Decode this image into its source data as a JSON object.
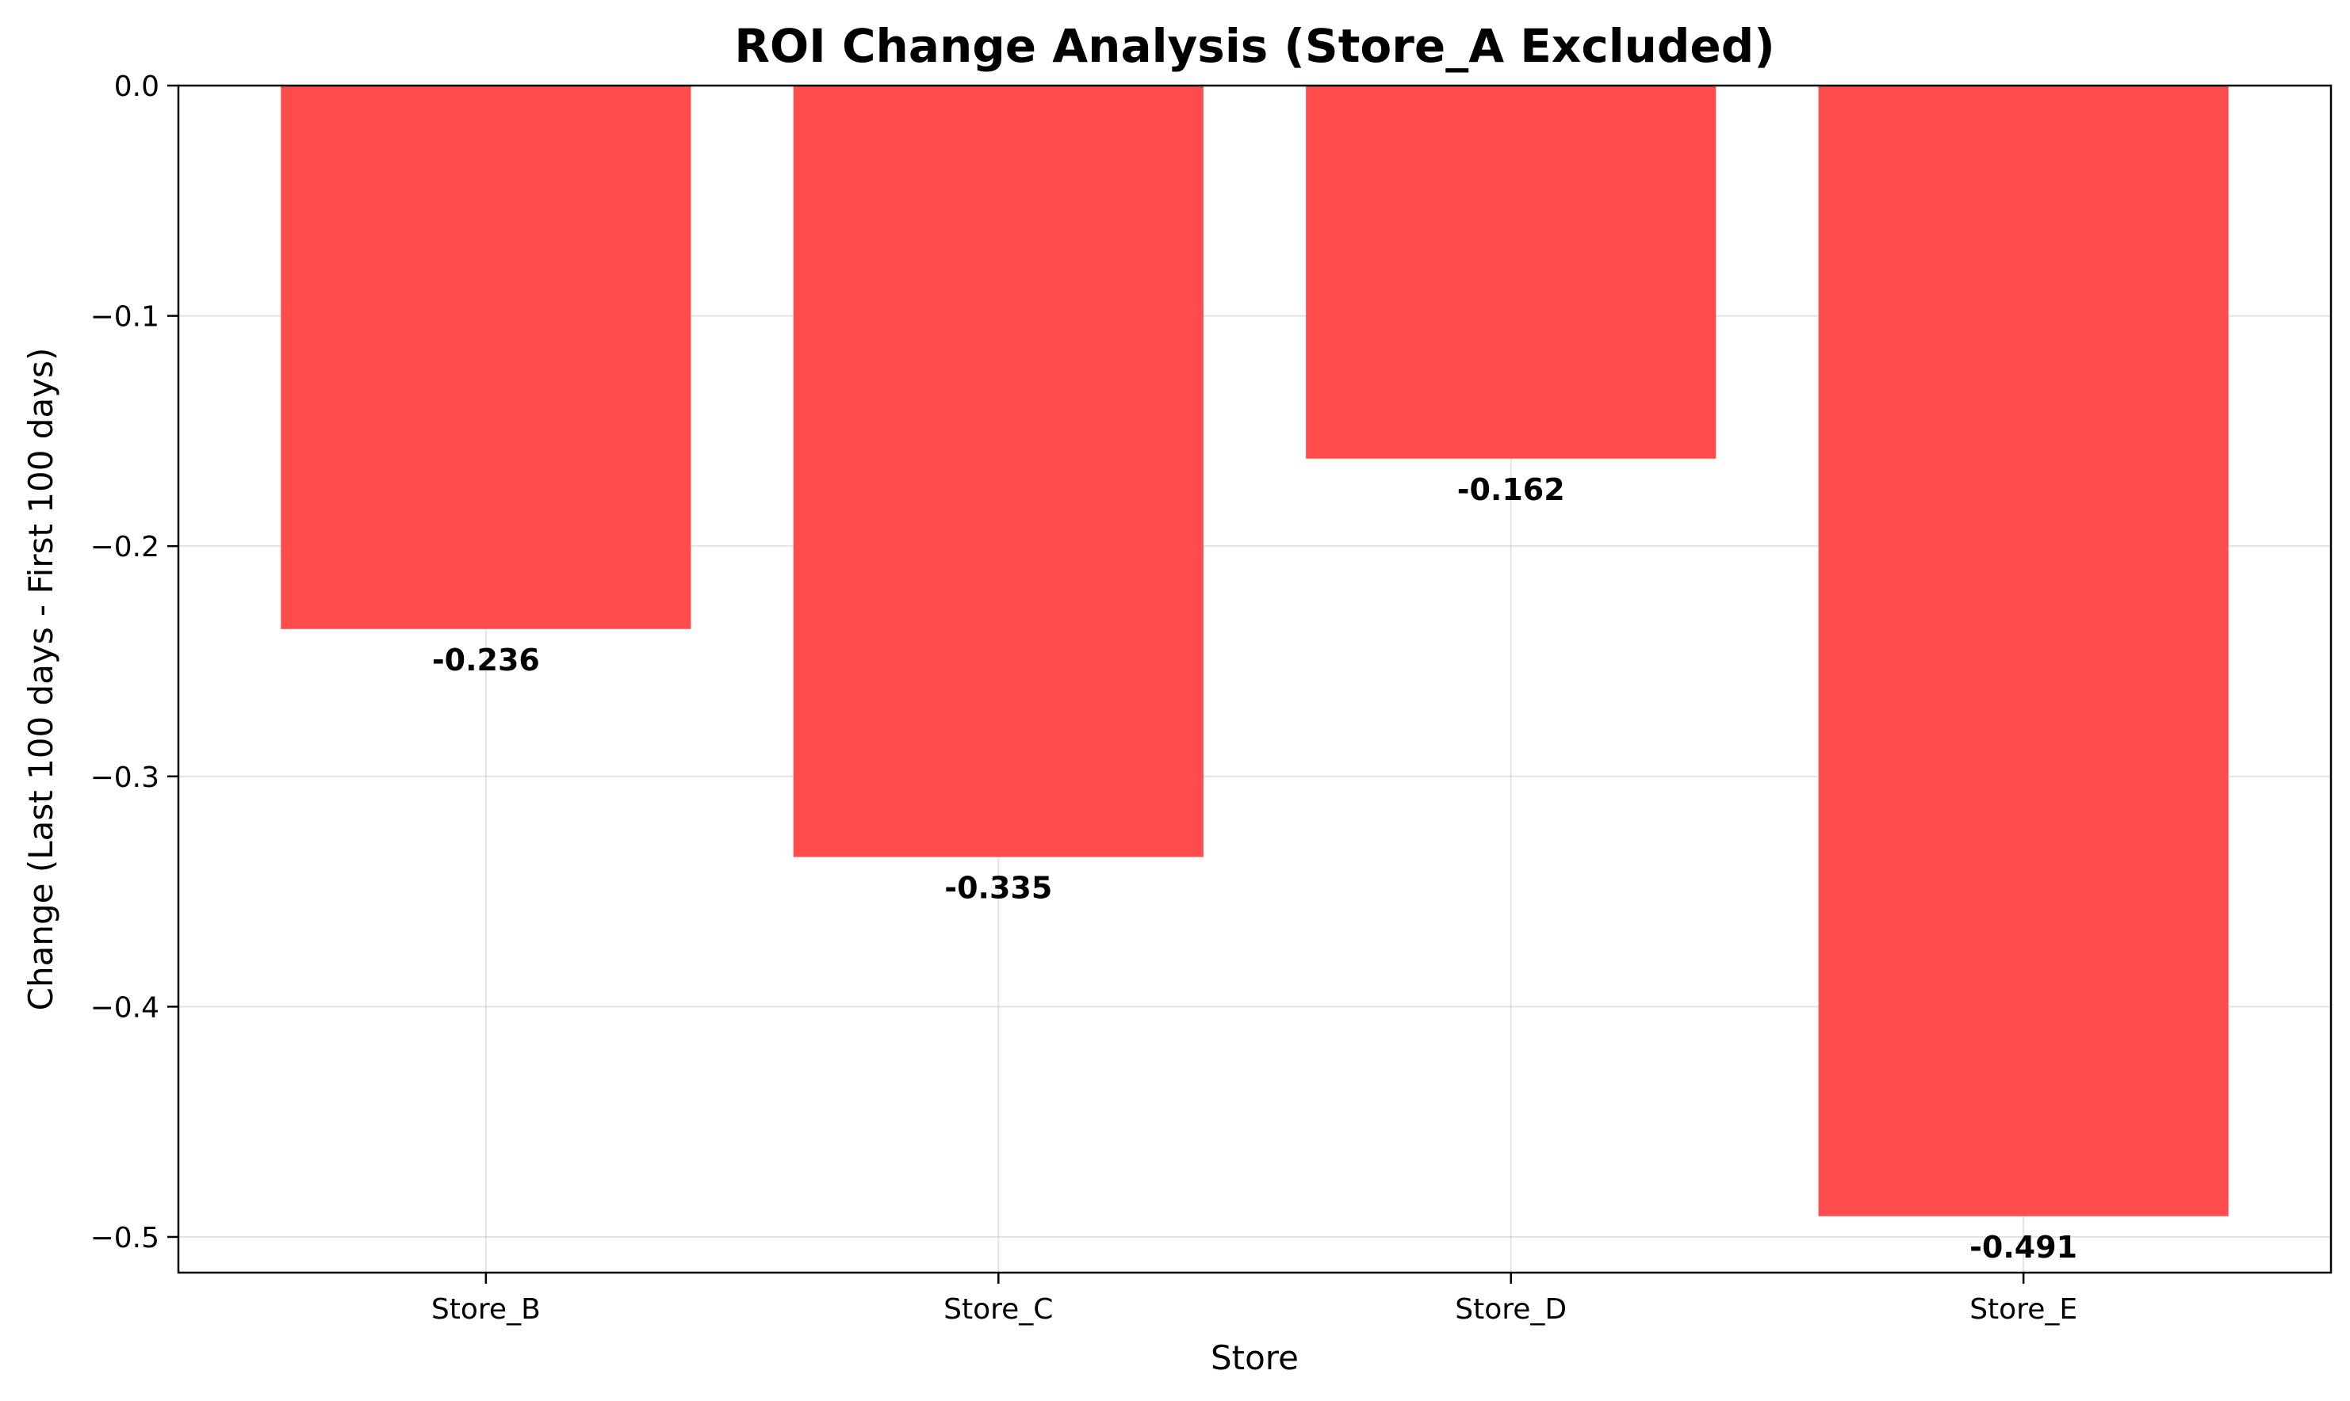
{
  "chart_data": {
    "type": "bar",
    "title": "ROI Change Analysis (Store_A Excluded)",
    "xlabel": "Store",
    "ylabel": "Change (Last 100 days - First 100 days)",
    "categories": [
      "Store_B",
      "Store_C",
      "Store_D",
      "Store_E"
    ],
    "values": [
      -0.236,
      -0.335,
      -0.162,
      -0.491
    ],
    "value_labels": [
      "-0.236",
      "-0.335",
      "-0.162",
      "-0.491"
    ],
    "ylim": [
      -0.5155,
      0.0
    ],
    "yticks": [
      0.0,
      -0.1,
      -0.2,
      -0.3,
      -0.4,
      -0.5
    ],
    "ytick_labels": [
      "0.0",
      "−0.1",
      "−0.2",
      "−0.3",
      "−0.4",
      "−0.5"
    ],
    "grid": true,
    "bar_color": "#ff4d4d"
  }
}
